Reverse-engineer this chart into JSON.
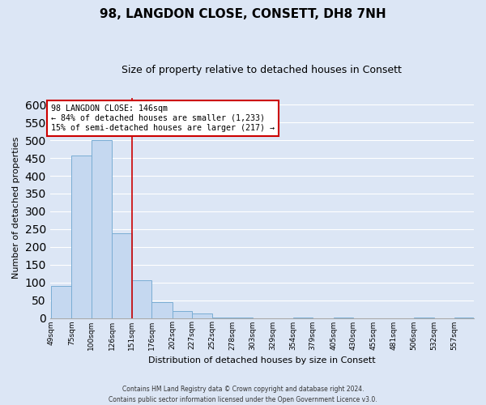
{
  "title": "98, LANGDON CLOSE, CONSETT, DH8 7NH",
  "subtitle": "Size of property relative to detached houses in Consett",
  "xlabel": "Distribution of detached houses by size in Consett",
  "ylabel": "Number of detached properties",
  "bar_edges": [
    49,
    75,
    100,
    126,
    151,
    176,
    202,
    227,
    252,
    278,
    303,
    329,
    354,
    379,
    405,
    430,
    455,
    481,
    506,
    532,
    557,
    582
  ],
  "bar_values": [
    90,
    458,
    500,
    238,
    105,
    45,
    20,
    12,
    2,
    2,
    0,
    0,
    2,
    0,
    2,
    0,
    0,
    0,
    2,
    0,
    2
  ],
  "bar_color": "#c5d8f0",
  "bar_edge_color": "#7aadd4",
  "property_line_x": 151,
  "property_line_color": "#cc0000",
  "annotation_text_line1": "98 LANGDON CLOSE: 146sqm",
  "annotation_text_line2": "← 84% of detached houses are smaller (1,233)",
  "annotation_text_line3": "15% of semi-detached houses are larger (217) →",
  "annotation_box_color": "#cc0000",
  "ylim": [
    0,
    620
  ],
  "yticks": [
    0,
    50,
    100,
    150,
    200,
    250,
    300,
    350,
    400,
    450,
    500,
    550,
    600
  ],
  "tick_labels": [
    "49sqm",
    "75sqm",
    "100sqm",
    "126sqm",
    "151sqm",
    "176sqm",
    "202sqm",
    "227sqm",
    "252sqm",
    "278sqm",
    "303sqm",
    "329sqm",
    "354sqm",
    "379sqm",
    "405sqm",
    "430sqm",
    "455sqm",
    "481sqm",
    "506sqm",
    "532sqm",
    "557sqm"
  ],
  "footer_line1": "Contains HM Land Registry data © Crown copyright and database right 2024.",
  "footer_line2": "Contains public sector information licensed under the Open Government Licence v3.0.",
  "bg_color": "#dce6f5",
  "plot_bg_color": "#dce6f5",
  "grid_color": "#ffffff",
  "title_fontsize": 11,
  "subtitle_fontsize": 9,
  "ylabel_fontsize": 8,
  "xlabel_fontsize": 8,
  "tick_fontsize": 6.5
}
